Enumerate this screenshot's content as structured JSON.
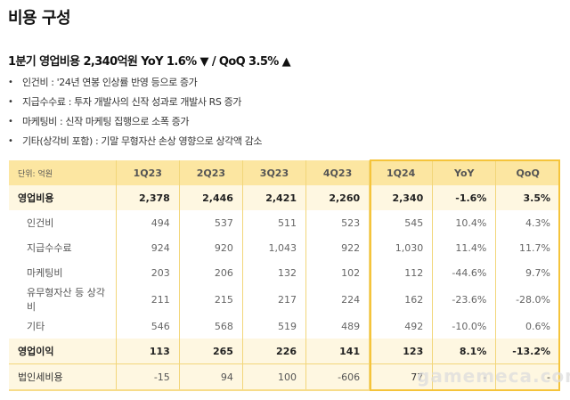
{
  "title": "비용 구성",
  "subtitle": "1분기 영업비용 2,340억원 YoY 1.6% ▼ / QoQ 3.5% ▲",
  "bullets": [
    {
      "text": "인건비 : '24년 연봉 인상률 반영 등으로 증가"
    },
    {
      "text": "지급수수료 : 투자 개발사의 신작 성과로 개발사 RS 증가"
    },
    {
      "text": "마케팅비 : 신작 마케팅 집행으로 소폭 증가"
    },
    {
      "text": "기타(상각비 포함) : 기말 무형자산 손상 영향으로 상각액 감소"
    }
  ],
  "bullet_glyph": "•",
  "table": {
    "unit_label": "단위: 억원",
    "columns": [
      "1Q23",
      "2Q23",
      "3Q23",
      "4Q23",
      "1Q24",
      "YoY",
      "QoQ"
    ],
    "rows": [
      {
        "label": "영업비용",
        "values": [
          "2,378",
          "2,446",
          "2,421",
          "2,260",
          "2,340",
          "-1.6%",
          "3.5%"
        ]
      },
      {
        "label": "인건비",
        "values": [
          "494",
          "537",
          "511",
          "523",
          "545",
          "10.4%",
          "4.3%"
        ]
      },
      {
        "label": "지급수수료",
        "values": [
          "924",
          "920",
          "1,043",
          "922",
          "1,030",
          "11.4%",
          "11.7%"
        ]
      },
      {
        "label": "마케팅비",
        "values": [
          "203",
          "206",
          "132",
          "102",
          "112",
          "-44.6%",
          "9.7%"
        ]
      },
      {
        "label": "유무형자산 등 상각비",
        "values": [
          "211",
          "215",
          "217",
          "224",
          "162",
          "-23.6%",
          "-28.0%"
        ]
      },
      {
        "label": "기타",
        "values": [
          "546",
          "568",
          "519",
          "489",
          "492",
          "-10.0%",
          "0.6%"
        ]
      },
      {
        "label": "영업이익",
        "values": [
          "113",
          "265",
          "226",
          "141",
          "123",
          "8.1%",
          "-13.2%"
        ]
      },
      {
        "label": "법인세비용",
        "values": [
          "-15",
          "94",
          "100",
          "-606",
          "77",
          "-",
          "-"
        ]
      }
    ]
  },
  "colors": {
    "header_bg": "#fce6a1",
    "highlight_border": "#f5c43b",
    "emphasis_row_bg": "#fef7e1",
    "grid_line": "#f2d67a"
  },
  "watermark": "gamemeca.com"
}
